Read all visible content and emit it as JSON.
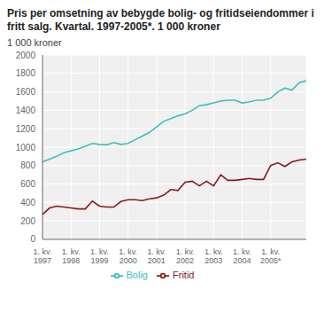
{
  "chart_data": {
    "type": "line",
    "title": "Pris per omsetning av bebygde bolig- og fritidseiendommer i fritt salg. Kvartal. 1997-2005*. 1 000 kroner",
    "ylabel": "1 000 kroner",
    "categories": [
      "1. kv.\n1997",
      null,
      null,
      null,
      "1. kv.\n1998",
      null,
      null,
      null,
      "1. kv.\n1999",
      null,
      null,
      null,
      "1. kv.\n2000",
      null,
      null,
      null,
      "1. kv.\n2001",
      null,
      null,
      null,
      "1. kv.\n2002",
      null,
      null,
      null,
      "1. kv.\n2003",
      null,
      null,
      null,
      "1. kv.\n2004",
      null,
      null,
      null,
      "1. kv.\n2005*",
      null,
      null,
      null,
      null,
      null
    ],
    "series": [
      {
        "name": "Bolig",
        "color": "#3dbfbf",
        "values": [
          840,
          870,
          900,
          940,
          960,
          980,
          1010,
          1040,
          1030,
          1025,
          1050,
          1030,
          1040,
          1080,
          1120,
          1160,
          1220,
          1280,
          1310,
          1340,
          1360,
          1400,
          1450,
          1460,
          1480,
          1500,
          1510,
          1510,
          1480,
          1490,
          1510,
          1510,
          1530,
          1600,
          1640,
          1620,
          1700,
          1720
        ]
      },
      {
        "name": "Fritid",
        "color": "#8b1a1a",
        "values": [
          270,
          340,
          360,
          350,
          340,
          330,
          330,
          415,
          360,
          350,
          350,
          410,
          430,
          430,
          420,
          440,
          450,
          480,
          540,
          530,
          620,
          630,
          580,
          630,
          580,
          700,
          640,
          640,
          650,
          660,
          650,
          650,
          800,
          830,
          790,
          840,
          860,
          870
        ]
      }
    ],
    "ylim": [
      0,
      2000
    ],
    "yticks": [
      0,
      200,
      400,
      600,
      800,
      1000,
      1200,
      1400,
      1600,
      1800,
      2000
    ],
    "grid": true,
    "legend": "bottom"
  }
}
